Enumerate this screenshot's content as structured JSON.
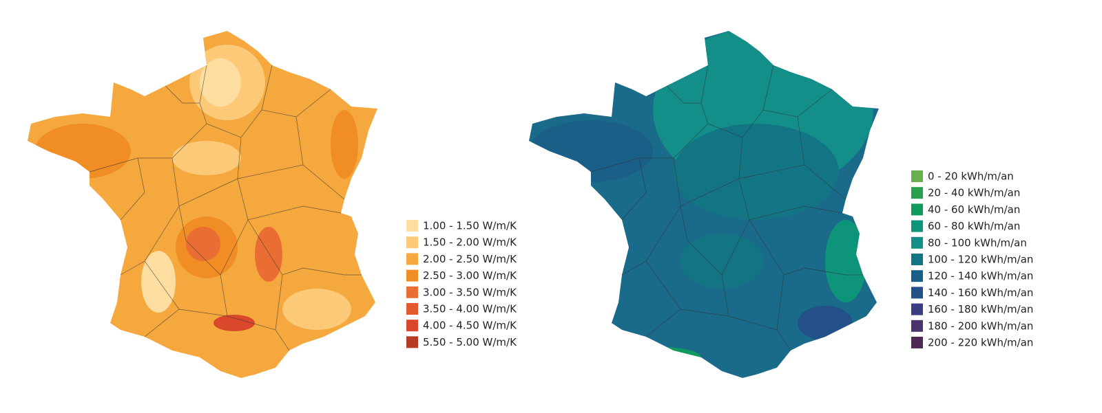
{
  "maps": [
    {
      "legend": [
        {
          "label": "1.00 - 1.50 W/m/K",
          "color": "#fddea0"
        },
        {
          "label": "1.50 - 2.00 W/m/K",
          "color": "#fbc978"
        },
        {
          "label": "2.00 - 2.50 W/m/K",
          "color": "#f5a83e"
        },
        {
          "label": "2.50 - 3.00 W/m/K",
          "color": "#f08d24"
        },
        {
          "label": "3.00 - 3.50 W/m/K",
          "color": "#ea6e33"
        },
        {
          "label": "3.50 - 4.00 W/m/K",
          "color": "#e35a2f"
        },
        {
          "label": "4.00 - 4.50 W/m/K",
          "color": "#d9482a"
        },
        {
          "label": "5.50 - 5.00 W/m/K",
          "color": "#b73a22"
        }
      ]
    },
    {
      "legend": [
        {
          "label": "0 - 20 kWh/m/an",
          "color": "#6ab04c"
        },
        {
          "label": "20 - 40 kWh/m/an",
          "color": "#29a04c"
        },
        {
          "label": "40 - 60 kWh/m/an",
          "color": "#0f9a5e"
        },
        {
          "label": "60 - 80 kWh/m/an",
          "color": "#0e9478"
        },
        {
          "label": "80 - 100 kWh/m/an",
          "color": "#138e88"
        },
        {
          "label": "100 - 120 kWh/m/an",
          "color": "#137584"
        },
        {
          "label": "120 - 140 kWh/m/an",
          "color": "#1a5f88"
        },
        {
          "label": "140 - 160 kWh/m/an",
          "color": "#235089"
        },
        {
          "label": "160 - 180 kWh/m/an",
          "color": "#3a3d84"
        },
        {
          "label": "180 - 200 kWh/m/an",
          "color": "#4a3470"
        },
        {
          "label": "200 - 220 kWh/m/an",
          "color": "#4c2a55"
        }
      ]
    }
  ]
}
